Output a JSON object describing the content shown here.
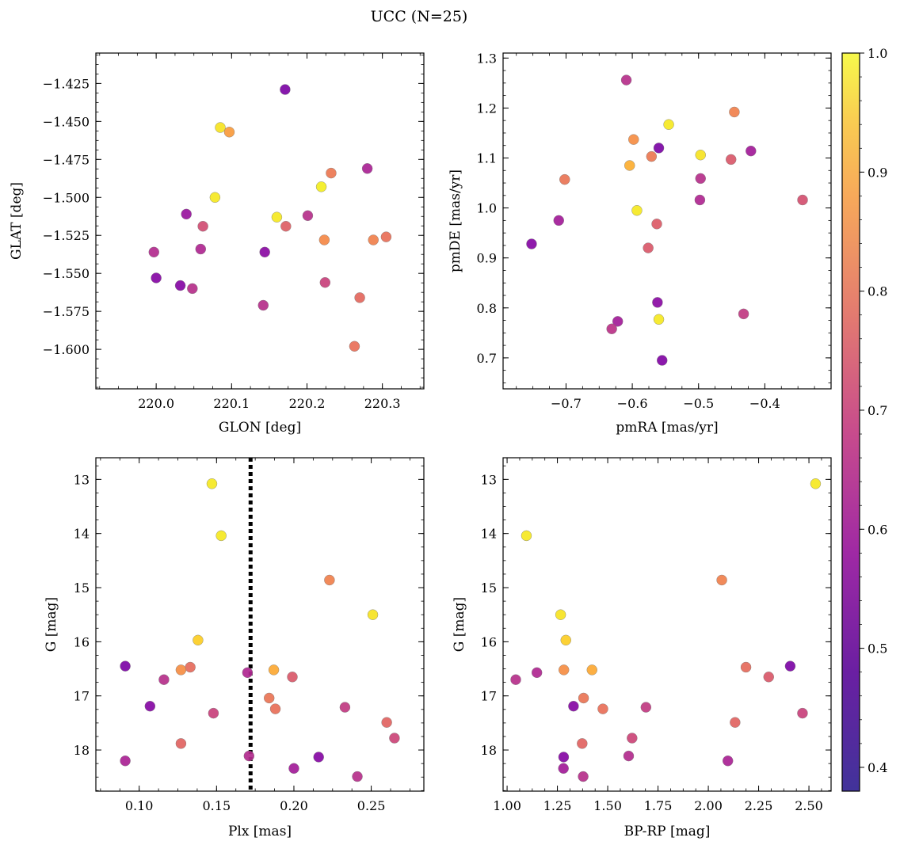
{
  "figure": {
    "title": "UCC (N=25)"
  },
  "colorbar": {
    "colormap": "plasma",
    "range": [
      0.38,
      1.0
    ],
    "ticks": [
      0.4,
      0.5,
      0.6,
      0.7,
      0.8,
      0.9,
      1.0
    ],
    "tick_labels": [
      "0.4",
      "0.5",
      "0.6",
      "0.7",
      "0.8",
      "0.9",
      "1.0"
    ]
  },
  "chart_data": [
    {
      "id": "glon-glat",
      "type": "scatter",
      "xlabel": "GLON [deg]",
      "ylabel": "GLAT [deg]",
      "xlim": [
        219.92,
        220.355
      ],
      "ylim": [
        -1.626,
        -1.405
      ],
      "xticks": [
        220.0,
        220.1,
        220.2,
        220.3
      ],
      "xtick_labels": [
        "220.0",
        "220.1",
        "220.2",
        "220.3"
      ],
      "yticks": [
        -1.425,
        -1.45,
        -1.475,
        -1.5,
        -1.525,
        -1.55,
        -1.575,
        -1.6
      ],
      "ytick_labels": [
        "−1.425",
        "−1.450",
        "−1.475",
        "−1.500",
        "−1.525",
        "−1.550",
        "−1.575",
        "−1.600"
      ],
      "grid": false,
      "points": [
        {
          "x": 220.171,
          "y": -1.429,
          "c": 0.42
        },
        {
          "x": 220.085,
          "y": -1.454,
          "c": 0.96
        },
        {
          "x": 220.097,
          "y": -1.457,
          "c": 0.82
        },
        {
          "x": 220.232,
          "y": -1.484,
          "c": 0.74
        },
        {
          "x": 220.28,
          "y": -1.481,
          "c": 0.52
        },
        {
          "x": 220.219,
          "y": -1.493,
          "c": 0.98
        },
        {
          "x": 220.078,
          "y": -1.5,
          "c": 0.97
        },
        {
          "x": 220.04,
          "y": -1.511,
          "c": 0.48
        },
        {
          "x": 220.16,
          "y": -1.513,
          "c": 0.97
        },
        {
          "x": 220.201,
          "y": -1.512,
          "c": 0.55
        },
        {
          "x": 220.062,
          "y": -1.519,
          "c": 0.63
        },
        {
          "x": 220.172,
          "y": -1.519,
          "c": 0.68
        },
        {
          "x": 220.223,
          "y": -1.528,
          "c": 0.78
        },
        {
          "x": 220.288,
          "y": -1.528,
          "c": 0.76
        },
        {
          "x": 220.305,
          "y": -1.526,
          "c": 0.72
        },
        {
          "x": 219.997,
          "y": -1.536,
          "c": 0.54
        },
        {
          "x": 220.059,
          "y": -1.534,
          "c": 0.53
        },
        {
          "x": 220.144,
          "y": -1.536,
          "c": 0.45
        },
        {
          "x": 220.0,
          "y": -1.553,
          "c": 0.44
        },
        {
          "x": 220.032,
          "y": -1.558,
          "c": 0.44
        },
        {
          "x": 220.048,
          "y": -1.56,
          "c": 0.55
        },
        {
          "x": 220.224,
          "y": -1.556,
          "c": 0.6
        },
        {
          "x": 220.142,
          "y": -1.571,
          "c": 0.55
        },
        {
          "x": 220.27,
          "y": -1.566,
          "c": 0.7
        },
        {
          "x": 220.263,
          "y": -1.598,
          "c": 0.72
        }
      ]
    },
    {
      "id": "pmra-pmde",
      "type": "scatter",
      "xlabel": "pmRA [mas/yr]",
      "ylabel": "pmDE [mas/yr]",
      "xlim": [
        -0.795,
        -0.3
      ],
      "ylim": [
        0.638,
        1.31
      ],
      "xticks": [
        -0.7,
        -0.6,
        -0.5,
        -0.4
      ],
      "xtick_labels": [
        "−0.7",
        "−0.6",
        "−0.5",
        "−0.4"
      ],
      "yticks": [
        0.7,
        0.8,
        0.9,
        1.0,
        1.1,
        1.2,
        1.3
      ],
      "ytick_labels": [
        "0.7",
        "0.8",
        "0.9",
        "1.0",
        "1.1",
        "1.2",
        "1.3"
      ],
      "grid": false,
      "points": [
        {
          "x": -0.609,
          "y": 1.256,
          "c": 0.55
        },
        {
          "x": -0.446,
          "y": 1.192,
          "c": 0.76
        },
        {
          "x": -0.545,
          "y": 1.167,
          "c": 0.97
        },
        {
          "x": -0.598,
          "y": 1.137,
          "c": 0.79
        },
        {
          "x": -0.56,
          "y": 1.12,
          "c": 0.42
        },
        {
          "x": -0.421,
          "y": 1.114,
          "c": 0.5
        },
        {
          "x": -0.497,
          "y": 1.106,
          "c": 0.96
        },
        {
          "x": -0.571,
          "y": 1.103,
          "c": 0.74
        },
        {
          "x": -0.451,
          "y": 1.097,
          "c": 0.66
        },
        {
          "x": -0.604,
          "y": 1.085,
          "c": 0.86
        },
        {
          "x": -0.497,
          "y": 1.059,
          "c": 0.55
        },
        {
          "x": -0.702,
          "y": 1.057,
          "c": 0.73
        },
        {
          "x": -0.498,
          "y": 1.016,
          "c": 0.53
        },
        {
          "x": -0.343,
          "y": 1.016,
          "c": 0.64
        },
        {
          "x": -0.593,
          "y": 0.995,
          "c": 0.97
        },
        {
          "x": -0.711,
          "y": 0.975,
          "c": 0.5
        },
        {
          "x": -0.563,
          "y": 0.968,
          "c": 0.67
        },
        {
          "x": -0.752,
          "y": 0.928,
          "c": 0.44
        },
        {
          "x": -0.576,
          "y": 0.92,
          "c": 0.66
        },
        {
          "x": -0.562,
          "y": 0.811,
          "c": 0.45
        },
        {
          "x": -0.432,
          "y": 0.788,
          "c": 0.58
        },
        {
          "x": -0.622,
          "y": 0.773,
          "c": 0.5
        },
        {
          "x": -0.56,
          "y": 0.777,
          "c": 0.97
        },
        {
          "x": -0.631,
          "y": 0.758,
          "c": 0.56
        },
        {
          "x": -0.555,
          "y": 0.695,
          "c": 0.43
        }
      ]
    },
    {
      "id": "plx-g",
      "type": "scatter",
      "xlabel": "Plx [mas]",
      "ylabel": "G [mag]",
      "xlim": [
        0.072,
        0.284
      ],
      "ylim": [
        18.76,
        12.6
      ],
      "y_inverted": true,
      "xticks": [
        0.1,
        0.15,
        0.2,
        0.25
      ],
      "xtick_labels": [
        "0.10",
        "0.15",
        "0.20",
        "0.25"
      ],
      "yticks": [
        13,
        14,
        15,
        16,
        17,
        18
      ],
      "ytick_labels": [
        "13",
        "14",
        "15",
        "16",
        "17",
        "18"
      ],
      "grid": false,
      "vline": {
        "x": 0.172,
        "style": "dotted",
        "color": "#000000"
      },
      "points": [
        {
          "x": 0.147,
          "y": 13.08,
          "c": 0.97
        },
        {
          "x": 0.153,
          "y": 14.04,
          "c": 0.97
        },
        {
          "x": 0.223,
          "y": 14.86,
          "c": 0.76
        },
        {
          "x": 0.251,
          "y": 15.5,
          "c": 0.96
        },
        {
          "x": 0.138,
          "y": 15.97,
          "c": 0.92
        },
        {
          "x": 0.091,
          "y": 16.45,
          "c": 0.42
        },
        {
          "x": 0.133,
          "y": 16.47,
          "c": 0.71
        },
        {
          "x": 0.127,
          "y": 16.52,
          "c": 0.79
        },
        {
          "x": 0.17,
          "y": 16.57,
          "c": 0.53
        },
        {
          "x": 0.187,
          "y": 16.52,
          "c": 0.85
        },
        {
          "x": 0.199,
          "y": 16.65,
          "c": 0.66
        },
        {
          "x": 0.116,
          "y": 16.7,
          "c": 0.55
        },
        {
          "x": 0.107,
          "y": 17.19,
          "c": 0.44
        },
        {
          "x": 0.184,
          "y": 17.04,
          "c": 0.73
        },
        {
          "x": 0.188,
          "y": 17.24,
          "c": 0.72
        },
        {
          "x": 0.233,
          "y": 17.21,
          "c": 0.58
        },
        {
          "x": 0.148,
          "y": 17.32,
          "c": 0.6
        },
        {
          "x": 0.26,
          "y": 17.49,
          "c": 0.69
        },
        {
          "x": 0.265,
          "y": 17.78,
          "c": 0.61
        },
        {
          "x": 0.127,
          "y": 17.88,
          "c": 0.69
        },
        {
          "x": 0.091,
          "y": 18.2,
          "c": 0.52
        },
        {
          "x": 0.171,
          "y": 18.11,
          "c": 0.54
        },
        {
          "x": 0.216,
          "y": 18.13,
          "c": 0.44
        },
        {
          "x": 0.2,
          "y": 18.34,
          "c": 0.5
        },
        {
          "x": 0.241,
          "y": 18.49,
          "c": 0.55
        }
      ]
    },
    {
      "id": "bprp-g",
      "type": "scatter",
      "xlabel": "BP-RP [mag]",
      "ylabel": "G [mag]",
      "xlim": [
        0.98,
        2.61
      ],
      "ylim": [
        18.76,
        12.6
      ],
      "y_inverted": true,
      "xticks": [
        1.0,
        1.25,
        1.5,
        1.75,
        2.0,
        2.25,
        2.5
      ],
      "xtick_labels": [
        "1.00",
        "1.25",
        "1.50",
        "1.75",
        "2.00",
        "2.25",
        "2.50"
      ],
      "yticks": [
        13,
        14,
        15,
        16,
        17,
        18
      ],
      "ytick_labels": [
        "13",
        "14",
        "15",
        "16",
        "17",
        "18"
      ],
      "grid": false,
      "points": [
        {
          "x": 2.533,
          "y": 13.08,
          "c": 0.97
        },
        {
          "x": 1.096,
          "y": 14.04,
          "c": 0.97
        },
        {
          "x": 2.067,
          "y": 14.86,
          "c": 0.76
        },
        {
          "x": 1.266,
          "y": 15.5,
          "c": 0.96
        },
        {
          "x": 1.292,
          "y": 15.97,
          "c": 0.92
        },
        {
          "x": 2.407,
          "y": 16.45,
          "c": 0.42
        },
        {
          "x": 2.187,
          "y": 16.47,
          "c": 0.71
        },
        {
          "x": 1.282,
          "y": 16.52,
          "c": 0.79
        },
        {
          "x": 1.422,
          "y": 16.52,
          "c": 0.85
        },
        {
          "x": 1.148,
          "y": 16.57,
          "c": 0.53
        },
        {
          "x": 2.3,
          "y": 16.65,
          "c": 0.66
        },
        {
          "x": 1.043,
          "y": 16.7,
          "c": 0.55
        },
        {
          "x": 1.38,
          "y": 17.04,
          "c": 0.73
        },
        {
          "x": 1.33,
          "y": 17.19,
          "c": 0.44
        },
        {
          "x": 1.69,
          "y": 17.21,
          "c": 0.58
        },
        {
          "x": 1.476,
          "y": 17.24,
          "c": 0.72
        },
        {
          "x": 2.468,
          "y": 17.32,
          "c": 0.6
        },
        {
          "x": 2.133,
          "y": 17.49,
          "c": 0.69
        },
        {
          "x": 1.621,
          "y": 17.78,
          "c": 0.61
        },
        {
          "x": 1.373,
          "y": 17.88,
          "c": 0.69
        },
        {
          "x": 1.604,
          "y": 18.11,
          "c": 0.54
        },
        {
          "x": 1.281,
          "y": 18.13,
          "c": 0.44
        },
        {
          "x": 2.097,
          "y": 18.2,
          "c": 0.52
        },
        {
          "x": 1.28,
          "y": 18.34,
          "c": 0.5
        },
        {
          "x": 1.378,
          "y": 18.49,
          "c": 0.55
        }
      ]
    }
  ]
}
